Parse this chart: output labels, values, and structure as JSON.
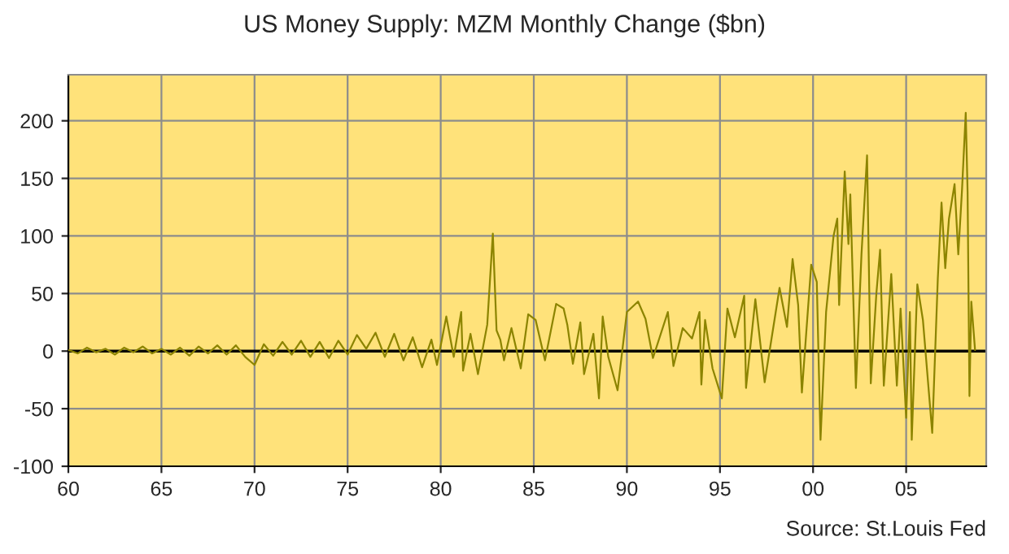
{
  "chart_data": {
    "type": "line",
    "title": "US Money Supply: MZM Monthly Change ($bn)",
    "annotations": [
      "Source: St.Louis Fed"
    ],
    "xlim": [
      1960,
      2009.3
    ],
    "ylim": [
      -100,
      240
    ],
    "xticks": [
      {
        "value": 1960,
        "label": "60"
      },
      {
        "value": 1965,
        "label": "65"
      },
      {
        "value": 1970,
        "label": "70"
      },
      {
        "value": 1975,
        "label": "75"
      },
      {
        "value": 1980,
        "label": "80"
      },
      {
        "value": 1985,
        "label": "85"
      },
      {
        "value": 1990,
        "label": "90"
      },
      {
        "value": 1995,
        "label": "95"
      },
      {
        "value": 2000,
        "label": "00"
      },
      {
        "value": 2005,
        "label": "05"
      }
    ],
    "yticks": [
      -100,
      -50,
      0,
      50,
      100,
      150,
      200
    ],
    "grid": true,
    "ref_lines": [
      {
        "axis": "y",
        "value": 0,
        "color": "#000000"
      }
    ],
    "series": [
      {
        "color": "#8c8400",
        "x": [
          1960,
          1960.5,
          1961,
          1961.5,
          1962,
          1962.5,
          1963,
          1963.5,
          1964,
          1964.5,
          1965,
          1965.5,
          1966,
          1966.5,
          1967,
          1967.5,
          1968,
          1968.5,
          1969,
          1969.5,
          1970,
          1970.5,
          1971,
          1971.5,
          1972,
          1972.5,
          1973,
          1973.5,
          1974,
          1974.5,
          1975,
          1975.5,
          1976,
          1976.5,
          1977,
          1977.5,
          1978,
          1978.5,
          1979,
          1979.5,
          1979.8,
          1980.3,
          1980.7,
          1981.1,
          1981.2,
          1981.6,
          1982.0,
          1982.5,
          1982.8,
          1983.0,
          1983.2,
          1983.4,
          1983.8,
          1984.3,
          1984.7,
          1985.1,
          1985.6,
          1986.2,
          1986.6,
          1986.8,
          1987.1,
          1987.5,
          1987.7,
          1988.2,
          1988.5,
          1988.7,
          1989.0,
          1989.5,
          1990.0,
          1990.6,
          1991.0,
          1991.4,
          1992.2,
          1992.5,
          1993.0,
          1993.5,
          1993.9,
          1994.0,
          1994.2,
          1994.6,
          1995.1,
          1995.4,
          1995.8,
          1996.3,
          1996.4,
          1996.9,
          1997.4,
          1998.2,
          1998.6,
          1998.9,
          1999.2,
          1999.4,
          1999.9,
          2000.2,
          2000.4,
          2000.7,
          2001.1,
          2001.3,
          2001.4,
          2001.7,
          2001.9,
          2002.0,
          2002.3,
          2002.6,
          2002.9,
          2003.1,
          2003.4,
          2003.6,
          2003.8,
          2004.2,
          2004.5,
          2004.7,
          2005.0,
          2005.2,
          2005.3,
          2005.6,
          2005.9,
          2006.4,
          2006.7,
          2006.9,
          2007.1,
          2007.3,
          2007.6,
          2007.8,
          2008.0,
          2008.2,
          2008.3,
          2008.4,
          2008.5,
          2008.7
        ],
        "values": [
          1,
          -2,
          3,
          -1,
          2,
          -3,
          3,
          -1,
          4,
          -2,
          2,
          -3,
          3,
          -4,
          4,
          -2,
          5,
          -3,
          5,
          -5,
          -12,
          6,
          -4,
          8,
          -3,
          9,
          -5,
          8,
          -6,
          9,
          -3,
          14,
          2,
          16,
          -5,
          15,
          -8,
          12,
          -14,
          10,
          -12,
          30,
          -5,
          34,
          -17,
          15,
          -20,
          23,
          102,
          18,
          10,
          -8,
          20,
          -15,
          32,
          27,
          -8,
          41,
          37,
          23,
          -11,
          25,
          -20,
          15,
          -41,
          30,
          -5,
          -34,
          34,
          43,
          28,
          -6,
          34,
          -13,
          20,
          11,
          34,
          -29,
          27,
          -15,
          -41,
          37,
          12,
          48,
          -32,
          45,
          -27,
          55,
          21,
          80,
          40,
          -36,
          75,
          60,
          -77,
          34,
          100,
          115,
          40,
          156,
          93,
          136,
          -32,
          84,
          170,
          -28,
          50,
          88,
          -30,
          67,
          -30,
          37,
          -58,
          34,
          -77,
          58,
          27,
          -71,
          63,
          129,
          72,
          115,
          145,
          84,
          140,
          207,
          138,
          -39,
          43,
          1
        ]
      }
    ]
  }
}
